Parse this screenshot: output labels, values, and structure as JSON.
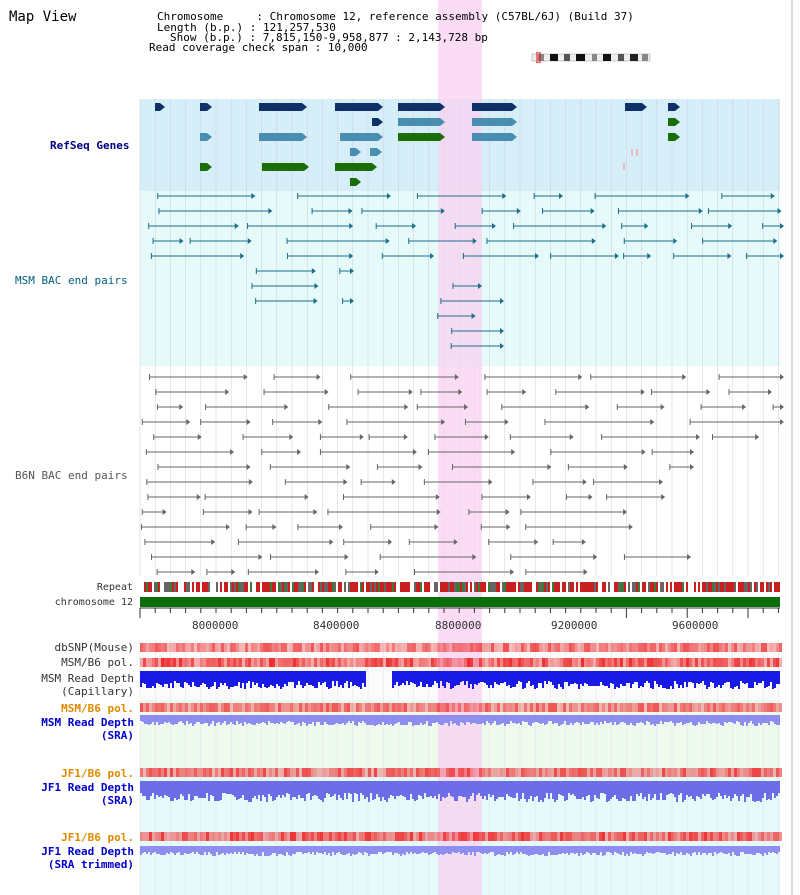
{
  "page_title": "Map View",
  "info": {
    "chromosome_key": "Chromosome",
    "chromosome_value": "Chromosome 12, reference assembly (C57BL/6J) (Build 37)",
    "length_key": "Length (b.p.)",
    "length_value": "121,257,530",
    "show_key": "Show (b.p.)",
    "show_value": "7,815,150-9,958,877 : 2,143,728 bp",
    "coverage_key": "Read coverage check span",
    "coverage_value": "10,000"
  },
  "tracks": {
    "refseq": "RefSeq Genes",
    "msm_bac": "MSM BAC end pairs",
    "b6n_bac": "B6N BAC end pairs",
    "repeat": "Repeat",
    "chromosome": "chromosome 12",
    "dbsnp": "dbSNP(Mouse)",
    "msm_b6_pol_1": "MSM/B6 pol.",
    "msm_read_depth_cap_1": "MSM Read Depth",
    "msm_read_depth_cap_2": "(Capillary)",
    "msm_b6_pol_2": "MSM/B6 pol.",
    "msm_read_depth_sra_1": "MSM Read Depth",
    "msm_read_depth_sra_2": "(SRA)",
    "jf1_b6_pol_1": "JF1/B6 pol.",
    "jf1_read_depth_sra_1": "JF1 Read Depth",
    "jf1_read_depth_sra_2": "(SRA)",
    "jf1_b6_pol_2": "JF1/B6 pol.",
    "jf1_read_depth_trim_1": "JF1 Read Depth",
    "jf1_read_depth_trim_2": "(SRA trimmed)"
  },
  "axis_ticks": [
    "8000000",
    "8400000",
    "8800000",
    "9200000",
    "9600000"
  ],
  "colors": {
    "refseq_bg": "#d6eef8",
    "msm_bg": "#e6fafa",
    "highlight": "#f8d2f0",
    "gene_navy": "#10306a",
    "gene_steel": "#4a8db3",
    "gene_green": "#1a6e0a",
    "bac_teal": "#1a6f8a",
    "bac_gray": "#666666",
    "chromosome_bar": "#0b6e0b",
    "depth_blue": "#1a1ae6",
    "depth_lavender": "#8e8ef0",
    "pol_red": "#ee4a4a"
  },
  "icons": [
    "ideogram-icon"
  ]
}
